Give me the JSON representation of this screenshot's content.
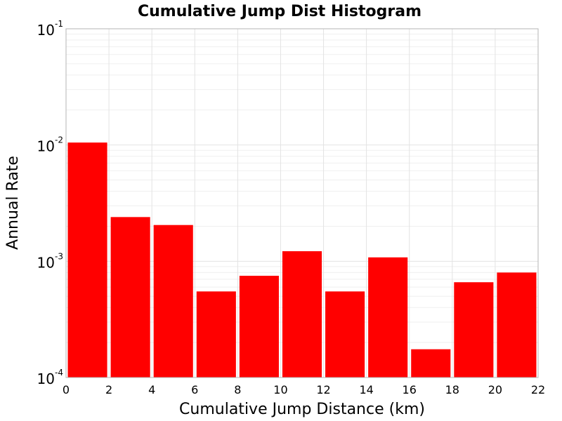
{
  "chart_data": {
    "type": "bar",
    "title": "Cumulative Jump Dist Histogram",
    "xlabel": "Cumulative Jump Distance (km)",
    "ylabel": "Annual Rate",
    "xlim": [
      0,
      22
    ],
    "ylim": [
      0.0001,
      0.1
    ],
    "yscale": "log",
    "grid": true,
    "bar_color": "#ff0000",
    "x_ticks": [
      "0",
      "2",
      "4",
      "6",
      "8",
      "10",
      "12",
      "14",
      "16",
      "18",
      "20",
      "22"
    ],
    "y_ticks": [
      {
        "base": "10",
        "exp": "-1",
        "value": 0.1
      },
      {
        "base": "10",
        "exp": "-2",
        "value": 0.01
      },
      {
        "base": "10",
        "exp": "-3",
        "value": 0.001
      },
      {
        "base": "10",
        "exp": "-4",
        "value": 0.0001
      }
    ],
    "bins": [
      {
        "x0": 0,
        "x1": 2,
        "value": 0.0105
      },
      {
        "x0": 2,
        "x1": 4,
        "value": 0.0024
      },
      {
        "x0": 4,
        "x1": 6,
        "value": 0.00205
      },
      {
        "x0": 6,
        "x1": 8,
        "value": 0.00055
      },
      {
        "x0": 8,
        "x1": 10,
        "value": 0.00075
      },
      {
        "x0": 10,
        "x1": 12,
        "value": 0.00122
      },
      {
        "x0": 12,
        "x1": 14,
        "value": 0.00055
      },
      {
        "x0": 14,
        "x1": 16,
        "value": 0.00108
      },
      {
        "x0": 16,
        "x1": 18,
        "value": 0.000175
      },
      {
        "x0": 18,
        "x1": 20,
        "value": 0.00066
      },
      {
        "x0": 20,
        "x1": 22,
        "value": 0.0008
      }
    ]
  }
}
